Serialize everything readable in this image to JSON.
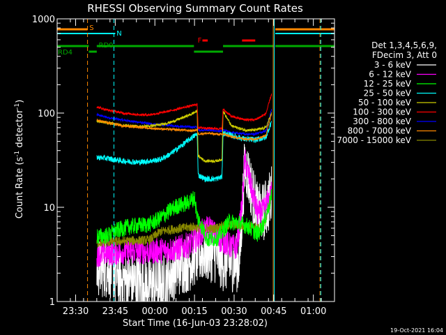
{
  "chart_data": {
    "type": "line",
    "title": "RHESSI Observing Summary Count Rates",
    "xlabel": "Start Time (16-Jun-03 23:28:02)",
    "ylabel_main": "Count Rate (s",
    "ylabel_sup": "-1",
    "ylabel_tail": " detector",
    "ylabel_close": ")",
    "footer_date": "19-Oct-2021 16:04",
    "yscale": "log",
    "ylim": [
      1,
      1000
    ],
    "xlim_minutes": [
      -5,
      100
    ],
    "y_ticks": [
      {
        "value": 1,
        "label": "1"
      },
      {
        "value": 10,
        "label": "10"
      },
      {
        "value": 100,
        "label": "100"
      },
      {
        "value": 1000,
        "label": "1000"
      }
    ],
    "x_ticks": [
      {
        "t": 2,
        "label": "23:30"
      },
      {
        "t": 17,
        "label": "23:45"
      },
      {
        "t": 32,
        "label": "00:00"
      },
      {
        "t": 47,
        "label": "00:15"
      },
      {
        "t": 62,
        "label": "00:30"
      },
      {
        "t": 77,
        "label": "00:45"
      },
      {
        "t": 92,
        "label": "01:00"
      }
    ],
    "legend_header": [
      "Det 1,3,4,5,6,9,",
      "FDecim 3, Att 0"
    ],
    "legend_position": "right",
    "flag_labels": [
      {
        "text": "S",
        "color": "#ff8800"
      },
      {
        "text": "N",
        "color": "#00ffff"
      },
      {
        "text": "F",
        "color": "#ff0000"
      },
      {
        "text": "RD0",
        "color": "#00aa00"
      },
      {
        "text": "RD4",
        "color": "#00aa00"
      }
    ],
    "series": [
      {
        "name": "3 - 6 keV",
        "color": "#ffffff",
        "ref": [
          [
            10,
            2.3
          ],
          [
            16,
            2.2
          ],
          [
            18,
            1.8
          ],
          [
            24,
            1.6
          ],
          [
            30,
            1.5
          ],
          [
            35,
            1.5
          ],
          [
            40,
            2.3
          ],
          [
            45,
            2.6
          ],
          [
            47,
            3.0
          ],
          [
            50,
            3.3
          ],
          [
            53,
            3.3
          ],
          [
            55,
            3.2
          ],
          [
            58,
            2.6
          ],
          [
            61,
            2.6
          ],
          [
            64,
            2.6
          ],
          [
            66,
            28
          ],
          [
            67,
            24
          ],
          [
            69,
            14
          ],
          [
            71,
            8.5
          ],
          [
            73,
            8.8
          ],
          [
            75,
            11
          ],
          [
            76.2,
            14
          ]
        ],
        "noise": 0.32,
        "gap": [
          -9,
          -9
        ]
      },
      {
        "name": "6 - 12 keV",
        "color": "#ff00ff",
        "ref": [
          [
            10,
            3.2
          ],
          [
            16,
            3.3
          ],
          [
            20,
            3.4
          ],
          [
            30,
            3.4
          ],
          [
            40,
            3.6
          ],
          [
            45,
            4.0
          ],
          [
            47,
            4.4
          ],
          [
            50,
            5.6
          ],
          [
            53,
            6.0
          ],
          [
            56,
            4.6
          ],
          [
            58,
            4.4
          ],
          [
            61,
            3.8
          ],
          [
            63,
            3.8
          ],
          [
            65,
            10
          ],
          [
            66,
            32
          ],
          [
            67,
            25
          ],
          [
            69,
            14
          ],
          [
            71,
            8.5
          ],
          [
            73,
            9
          ],
          [
            76.2,
            14
          ]
        ],
        "noise": 0.14,
        "gap": [
          -9,
          -9
        ]
      },
      {
        "name": "12 - 25 keV",
        "color": "#00ff00",
        "ref": [
          [
            10,
            4.9
          ],
          [
            14,
            5.0
          ],
          [
            17,
            5.6
          ],
          [
            22,
            6.2
          ],
          [
            26,
            6.4
          ],
          [
            30,
            6.6
          ],
          [
            34,
            7.6
          ],
          [
            37,
            8.9
          ],
          [
            40,
            10.2
          ],
          [
            44,
            11.0
          ],
          [
            47,
            12.6
          ],
          [
            48,
            8
          ],
          [
            52,
            4.5
          ],
          [
            56,
            4.8
          ],
          [
            60,
            7
          ],
          [
            64,
            6.8
          ],
          [
            67,
            6.3
          ],
          [
            71,
            5.2
          ],
          [
            73,
            6.5
          ],
          [
            76.2,
            13
          ]
        ],
        "noise": 0.09,
        "gap": [
          -9,
          -9
        ]
      },
      {
        "name": "25 - 50 keV",
        "color": "#00ffff",
        "ref": [
          [
            10,
            34
          ],
          [
            14,
            33
          ],
          [
            20,
            31
          ],
          [
            26,
            30
          ],
          [
            30,
            31
          ],
          [
            34,
            32
          ],
          [
            38,
            37
          ],
          [
            42,
            45
          ],
          [
            46,
            55
          ],
          [
            48,
            60
          ],
          [
            48.4,
            22
          ],
          [
            51,
            20
          ],
          [
            55,
            20
          ],
          [
            57.4,
            21
          ],
          [
            57.8,
            61
          ],
          [
            61,
            58
          ],
          [
            66,
            53
          ],
          [
            70,
            52
          ],
          [
            74,
            55
          ],
          [
            76.2,
            82
          ]
        ],
        "noise": 0.03,
        "gap": [
          -9,
          -9
        ]
      },
      {
        "name": "50 - 100 keV",
        "color": "#cccc00",
        "ref": [
          [
            10,
            82
          ],
          [
            14,
            79
          ],
          [
            20,
            74
          ],
          [
            26,
            72
          ],
          [
            30,
            73
          ],
          [
            34,
            75
          ],
          [
            38,
            80
          ],
          [
            42,
            88
          ],
          [
            46,
            98
          ],
          [
            48,
            105
          ],
          [
            48.4,
            35
          ],
          [
            51,
            31
          ],
          [
            55,
            31
          ],
          [
            57.4,
            32
          ],
          [
            57.8,
            105
          ],
          [
            61,
            73
          ],
          [
            66,
            66
          ],
          [
            70,
            66
          ],
          [
            74,
            70
          ],
          [
            76.2,
            100
          ]
        ],
        "noise": 0.015,
        "gap": [
          -9,
          -9
        ]
      },
      {
        "name": "100 - 300 keV",
        "color": "#ff0000",
        "ref": [
          [
            10,
            116
          ],
          [
            14,
            108
          ],
          [
            20,
            100
          ],
          [
            26,
            96
          ],
          [
            30,
            96
          ],
          [
            34,
            100
          ],
          [
            38,
            106
          ],
          [
            42,
            113
          ],
          [
            46,
            120
          ],
          [
            48,
            124
          ],
          [
            48.4,
            70
          ],
          [
            57.4,
            68
          ],
          [
            57.8,
            110
          ],
          [
            61,
            92
          ],
          [
            66,
            85
          ],
          [
            70,
            85
          ],
          [
            74,
            98
          ],
          [
            76.2,
            160
          ]
        ],
        "noise": 0.012,
        "gap": [
          -9,
          -9
        ]
      },
      {
        "name": "300 - 800 keV",
        "color": "#0000ff",
        "ref": [
          [
            10,
            96
          ],
          [
            14,
            90
          ],
          [
            20,
            84
          ],
          [
            26,
            80
          ],
          [
            30,
            77
          ],
          [
            34,
            75
          ],
          [
            38,
            74
          ],
          [
            42,
            72
          ],
          [
            46,
            71
          ],
          [
            48,
            71
          ],
          [
            48.4,
            66
          ],
          [
            52,
            66
          ],
          [
            57.4,
            64
          ],
          [
            57.8,
            66
          ],
          [
            61,
            62
          ],
          [
            66,
            60
          ],
          [
            70,
            60
          ],
          [
            74,
            65
          ],
          [
            76.2,
            110
          ]
        ],
        "noise": 0.012,
        "gap": [
          -9,
          -9
        ]
      },
      {
        "name": "800 - 7000 keV",
        "color": "#ff8800",
        "ref": [
          [
            10,
            84
          ],
          [
            14,
            79
          ],
          [
            20,
            73
          ],
          [
            26,
            71
          ],
          [
            30,
            69
          ],
          [
            34,
            68
          ],
          [
            38,
            67
          ],
          [
            42,
            66
          ],
          [
            46,
            65
          ],
          [
            48,
            66
          ],
          [
            48.4,
            60
          ],
          [
            52,
            61
          ],
          [
            57.4,
            59
          ],
          [
            57.8,
            60
          ],
          [
            61,
            56
          ],
          [
            66,
            53
          ],
          [
            70,
            53
          ],
          [
            74,
            58
          ],
          [
            76.2,
            100
          ]
        ],
        "noise": 0.012,
        "gap": [
          -9,
          -9
        ]
      },
      {
        "name": "7000 - 15000 keV",
        "color": "#888800",
        "ref": [
          [
            10,
            4.2
          ],
          [
            16,
            4.3
          ],
          [
            22,
            4.4
          ],
          [
            30,
            4.5
          ],
          [
            34,
            5.5
          ],
          [
            38,
            5.8
          ],
          [
            42,
            6.0
          ],
          [
            46,
            6.2
          ],
          [
            50,
            6.0
          ],
          [
            54,
            5.9
          ],
          [
            58,
            6.4
          ],
          [
            62,
            6.5
          ],
          [
            64,
            6.4
          ],
          [
            66,
            6.3
          ],
          [
            70,
            6.2
          ],
          [
            72,
            5.8
          ],
          [
            74,
            7.5
          ],
          [
            76.2,
            13
          ]
        ],
        "noise": 0.05,
        "gap": [
          -9,
          -9
        ]
      }
    ]
  }
}
